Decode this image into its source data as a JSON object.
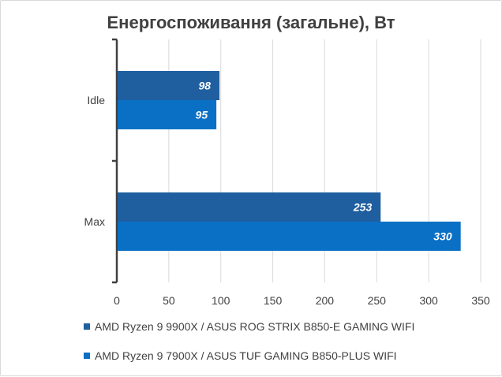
{
  "chart_data": {
    "type": "bar",
    "orientation": "horizontal",
    "title": "Енергоспоживання (загальне), Вт",
    "categories": [
      "Idle",
      "Max"
    ],
    "series": [
      {
        "name": "AMD Ryzen 9 9900X / ASUS ROG STRIX B850-E GAMING WIFI",
        "color": "#1f5fa0",
        "values": [
          98,
          253
        ]
      },
      {
        "name": "AMD Ryzen 9 7900X / ASUS TUF GAMING B850-PLUS WIFI",
        "color": "#0a70c5",
        "values": [
          95,
          330
        ]
      }
    ],
    "xlim": [
      0,
      350
    ],
    "xticks": [
      0,
      50,
      100,
      150,
      200,
      250,
      300,
      350
    ],
    "grid": true,
    "legend_position": "bottom"
  }
}
